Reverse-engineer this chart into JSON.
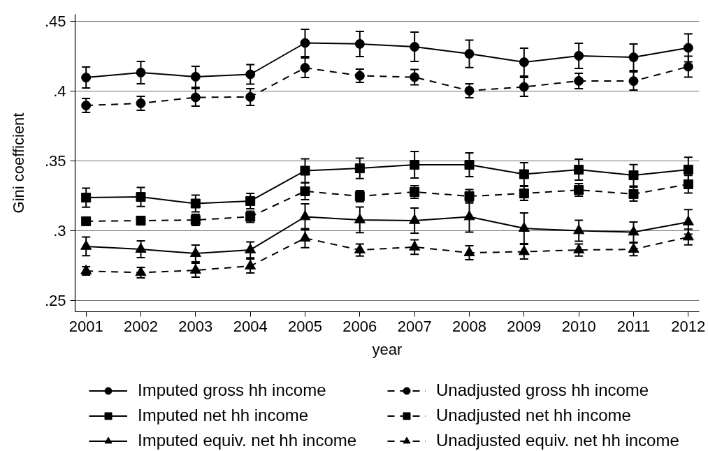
{
  "chart_data": {
    "type": "line",
    "xlabel": "year",
    "ylabel": "Gini coefficient",
    "x": [
      2001,
      2002,
      2003,
      2004,
      2005,
      2006,
      2007,
      2008,
      2009,
      2010,
      2011,
      2012
    ],
    "xlim": [
      2000.8,
      2012.2
    ],
    "xticks": [
      2001,
      2002,
      2003,
      2004,
      2005,
      2006,
      2007,
      2008,
      2009,
      2010,
      2011,
      2012
    ],
    "ylim": [
      0.242,
      0.455
    ],
    "yticks": [
      {
        "value": 0.25,
        "label": ".25"
      },
      {
        "value": 0.3,
        "label": ".3"
      },
      {
        "value": 0.35,
        "label": ".35"
      },
      {
        "value": 0.4,
        "label": ".4"
      },
      {
        "value": 0.45,
        "label": ".45"
      }
    ],
    "grid": "y",
    "legend": "bottom",
    "series": [
      {
        "name": "Imputed gross hh income",
        "color": "#000000",
        "marker": "circle",
        "line_style": "solid",
        "values": [
          0.4097,
          0.4133,
          0.4103,
          0.412,
          0.4345,
          0.4338,
          0.4317,
          0.4267,
          0.4207,
          0.4253,
          0.4242,
          0.431
        ],
        "errors": [
          0.0075,
          0.008,
          0.0075,
          0.007,
          0.0097,
          0.009,
          0.0105,
          0.0098,
          0.01,
          0.009,
          0.0095,
          0.01
        ]
      },
      {
        "name": "Unadjusted gross hh income",
        "color": "#000000",
        "marker": "circle",
        "line_style": "dashed",
        "values": [
          0.3897,
          0.3913,
          0.3955,
          0.3958,
          0.4167,
          0.411,
          0.41,
          0.4003,
          0.403,
          0.4073,
          0.4072,
          0.4175
        ],
        "errors": [
          0.005,
          0.005,
          0.0063,
          0.006,
          0.007,
          0.0048,
          0.0055,
          0.005,
          0.0067,
          0.0055,
          0.0065,
          0.0075
        ]
      },
      {
        "name": "Imputed net hh income",
        "color": "#000000",
        "marker": "square",
        "line_style": "solid",
        "values": [
          0.3237,
          0.3242,
          0.3195,
          0.3213,
          0.343,
          0.3447,
          0.3472,
          0.3472,
          0.3405,
          0.3437,
          0.3397,
          0.3438
        ],
        "errors": [
          0.0068,
          0.0068,
          0.006,
          0.0055,
          0.0085,
          0.0073,
          0.0095,
          0.0085,
          0.0083,
          0.0075,
          0.0077,
          0.0088
        ]
      },
      {
        "name": "Unadjusted net hh income",
        "color": "#000000",
        "marker": "square",
        "line_style": "dashed",
        "values": [
          0.3068,
          0.3072,
          0.3077,
          0.31,
          0.3283,
          0.3247,
          0.3278,
          0.3247,
          0.3267,
          0.3292,
          0.3263,
          0.3333
        ],
        "errors": [
          0.002,
          0.003,
          0.004,
          0.004,
          0.006,
          0.004,
          0.0045,
          0.0048,
          0.005,
          0.0045,
          0.005,
          0.0063
        ]
      },
      {
        "name": "Imputed equiv. net hh income",
        "color": "#000000",
        "marker": "triangle",
        "line_style": "solid",
        "values": [
          0.2888,
          0.2867,
          0.2837,
          0.2863,
          0.31,
          0.3078,
          0.3073,
          0.31,
          0.3017,
          0.3,
          0.299,
          0.3063
        ],
        "errors": [
          0.0067,
          0.006,
          0.006,
          0.0057,
          0.0092,
          0.0092,
          0.009,
          0.011,
          0.011,
          0.0075,
          0.0073,
          0.0088
        ]
      },
      {
        "name": "Unadjusted equiv. net hh income",
        "color": "#000000",
        "marker": "triangle",
        "line_style": "dashed",
        "values": [
          0.2712,
          0.27,
          0.2717,
          0.2747,
          0.2947,
          0.2862,
          0.2883,
          0.2842,
          0.285,
          0.2862,
          0.2867,
          0.2955
        ],
        "errors": [
          0.003,
          0.0037,
          0.005,
          0.005,
          0.0068,
          0.0043,
          0.0052,
          0.005,
          0.0053,
          0.0043,
          0.0046,
          0.0056
        ]
      }
    ]
  }
}
